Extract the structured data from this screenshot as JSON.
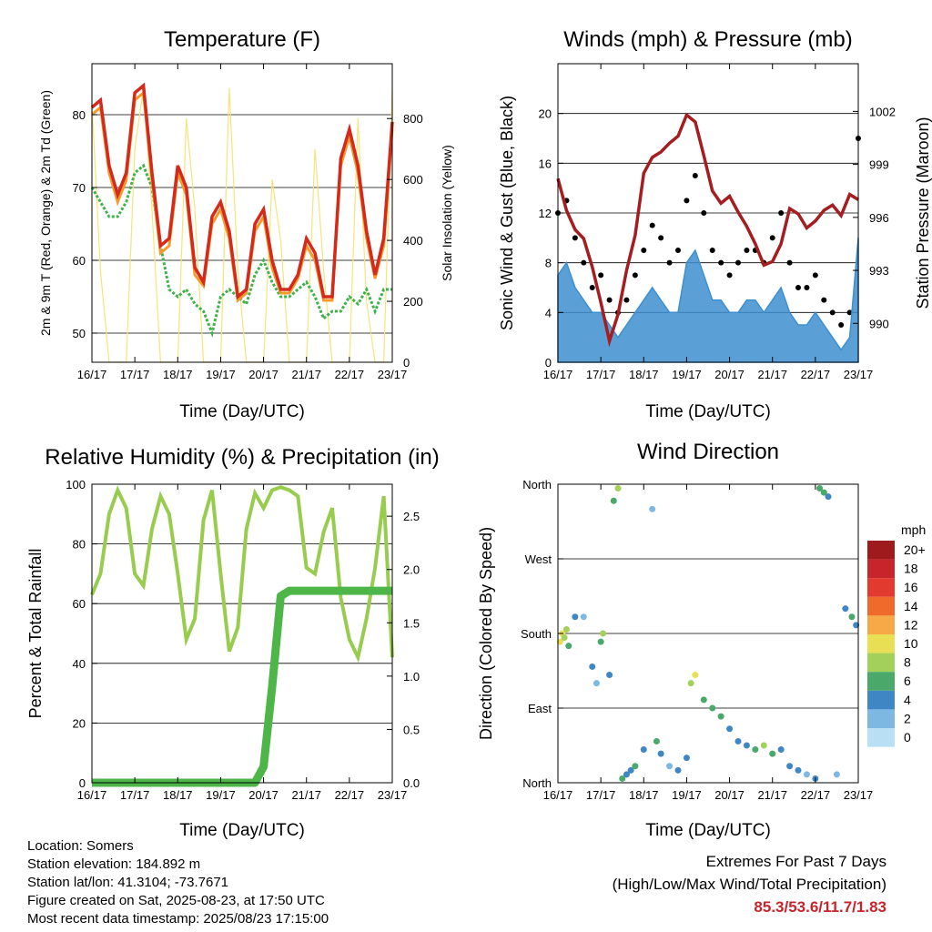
{
  "x_ticks": [
    "16/17",
    "17/17",
    "18/17",
    "19/17",
    "20/17",
    "21/17",
    "22/17",
    "23/17"
  ],
  "colors": {
    "temp2m": "#d42a1c",
    "temp9m": "#f39a2c",
    "dewpoint": "#3fb24a",
    "solar": "#f7e37a",
    "wind": "#3d8fd0",
    "gust": "#000000",
    "pressure": "#a41d21",
    "rh": "#98cc4f",
    "precip": "#4eb648",
    "extremes": "#c8242b"
  },
  "chart_data": [
    {
      "type": "line",
      "title": "Temperature (F)",
      "xlabel": "Time (Day/UTC)",
      "ylabel_left": "2m & 9m T (Red, Orange) & 2m Td (Green)",
      "ylabel_right": "Solar Insolation (Yellow)",
      "ylim_left": [
        46,
        87
      ],
      "ylim_right": [
        0,
        980
      ],
      "yticks_left": [
        50,
        60,
        70,
        80
      ],
      "yticks_right": [
        0,
        200,
        400,
        600,
        800
      ],
      "grid": true,
      "x_days": [
        0,
        0.2,
        0.4,
        0.6,
        0.8,
        1.0,
        1.2,
        1.4,
        1.6,
        1.8,
        2.0,
        2.2,
        2.4,
        2.6,
        2.8,
        3.0,
        3.2,
        3.4,
        3.6,
        3.8,
        4.0,
        4.2,
        4.4,
        4.6,
        4.8,
        5.0,
        5.2,
        5.4,
        5.6,
        5.8,
        6.0,
        6.2,
        6.4,
        6.6,
        6.8,
        7.0
      ],
      "series": [
        {
          "name": "2m T (Red)",
          "values": [
            81,
            82,
            73,
            69,
            72,
            83,
            84,
            72,
            62,
            63,
            73,
            70,
            59,
            57,
            66,
            68,
            64,
            55,
            56,
            65,
            67,
            60,
            56,
            56,
            58,
            63,
            61,
            55,
            55,
            74,
            78,
            73,
            64,
            58,
            63,
            79
          ]
        },
        {
          "name": "9m T (Orange)",
          "values": [
            80,
            81,
            72,
            68,
            71,
            82,
            83,
            71,
            61,
            62,
            72,
            69,
            58,
            56.5,
            65,
            67,
            63,
            54.5,
            55.5,
            64,
            66,
            59,
            55.5,
            55.5,
            57.5,
            62,
            60,
            54.5,
            54.5,
            73,
            77,
            72,
            63,
            57.5,
            62,
            78
          ]
        },
        {
          "name": "2m Td (Green)",
          "values": [
            70,
            68,
            66,
            66,
            68,
            72,
            73,
            70,
            62,
            56,
            55,
            56,
            54,
            53,
            50,
            55,
            56,
            55,
            54,
            58,
            60,
            57,
            55,
            55,
            56,
            57,
            55,
            52,
            53,
            53,
            55,
            54,
            56,
            53,
            56,
            56
          ]
        },
        {
          "name": "Solar Insolation (Yellow)",
          "values": [
            850,
            300,
            0,
            0,
            0,
            700,
            900,
            500,
            0,
            0,
            0,
            800,
            500,
            0,
            0,
            0,
            900,
            300,
            0,
            0,
            0,
            600,
            400,
            0,
            0,
            0,
            700,
            300,
            0,
            0,
            0,
            800,
            200,
            0,
            0,
            900
          ]
        }
      ]
    },
    {
      "type": "scatter",
      "title": "Winds (mph) & Pressure (mb)",
      "xlabel": "Time (Day/UTC)",
      "ylabel_left": "Sonic Wind & Gust (Blue, Black)",
      "ylabel_right": "Station Pressure (Maroon)",
      "ylim_left": [
        0,
        24
      ],
      "ylim_right": [
        987.8,
        1004.7
      ],
      "yticks_left": [
        0,
        4,
        8,
        12,
        16,
        20
      ],
      "yticks_right": [
        990,
        993,
        996,
        999,
        1002
      ],
      "grid": true,
      "x_days": [
        0,
        0.2,
        0.4,
        0.6,
        0.8,
        1.0,
        1.2,
        1.4,
        1.6,
        1.8,
        2.0,
        2.2,
        2.4,
        2.6,
        2.8,
        3.0,
        3.2,
        3.4,
        3.6,
        3.8,
        4.0,
        4.2,
        4.4,
        4.6,
        4.8,
        5.0,
        5.2,
        5.4,
        5.6,
        5.8,
        6.0,
        6.2,
        6.4,
        6.6,
        6.8,
        7.0
      ],
      "series": [
        {
          "name": "Sonic Wind (Blue)",
          "values": [
            7,
            8,
            6,
            5,
            4,
            4,
            3,
            2,
            3,
            4,
            5,
            6,
            5,
            4,
            4,
            8,
            9,
            7,
            5,
            5,
            4,
            4,
            5,
            5,
            4,
            5,
            6,
            4,
            3,
            3,
            4,
            3,
            2,
            1,
            2,
            10
          ]
        },
        {
          "name": "Gust (Black)",
          "values": [
            12,
            13,
            10,
            8,
            6,
            7,
            5,
            4,
            5,
            7,
            9,
            11,
            10,
            8,
            9,
            13,
            15,
            12,
            9,
            8,
            7,
            8,
            9,
            9,
            8,
            10,
            12,
            8,
            6,
            6,
            7,
            5,
            4,
            3,
            4,
            18
          ]
        },
        {
          "name": "Station Pressure (Maroon)",
          "values": [
            998.2,
            996.4,
            995.3,
            994.8,
            993.2,
            991.2,
            989,
            990.5,
            993,
            995,
            998.5,
            999.4,
            999.7,
            1000.2,
            1000.6,
            1001.8,
            1001.4,
            999.5,
            997.5,
            996.8,
            997.2,
            996.3,
            995.5,
            994.5,
            993.3,
            993.5,
            994.5,
            996.5,
            996.2,
            995.4,
            995.8,
            996.4,
            996.7,
            996.1,
            997.3,
            997
          ]
        }
      ]
    },
    {
      "type": "line",
      "title": "Relative Humidity (%) & Precipitation (in)",
      "xlabel": "Time (Day/UTC)",
      "ylabel_left": "Percent & Total Rainfall",
      "ylim_left": [
        0,
        100
      ],
      "ylim_right": [
        0,
        2.8
      ],
      "yticks_left": [
        0,
        20,
        40,
        60,
        80,
        100
      ],
      "yticks_right": [
        0.0,
        0.5,
        1.0,
        1.5,
        2.0,
        2.5
      ],
      "grid": true,
      "x_days": [
        0,
        0.2,
        0.4,
        0.6,
        0.8,
        1.0,
        1.2,
        1.4,
        1.6,
        1.8,
        2.0,
        2.2,
        2.4,
        2.6,
        2.8,
        3.0,
        3.2,
        3.4,
        3.6,
        3.8,
        4.0,
        4.2,
        4.4,
        4.6,
        4.8,
        5.0,
        5.2,
        5.4,
        5.6,
        5.8,
        6.0,
        6.2,
        6.4,
        6.6,
        6.8,
        7.0
      ],
      "series": [
        {
          "name": "Relative Humidity",
          "values": [
            63,
            70,
            90,
            98,
            92,
            70,
            66,
            85,
            96,
            90,
            70,
            48,
            55,
            88,
            98,
            70,
            44,
            52,
            85,
            97,
            92,
            98,
            99,
            98,
            96,
            72,
            70,
            84,
            92,
            62,
            48,
            42,
            55,
            72,
            96,
            42
          ]
        },
        {
          "name": "Total Precipitation",
          "values": [
            0,
            0,
            0,
            0,
            0,
            0,
            0,
            0,
            0,
            0,
            0,
            0,
            0,
            0,
            0,
            0,
            0,
            0,
            0,
            0,
            0.15,
            0.9,
            1.75,
            1.8,
            1.8,
            1.8,
            1.8,
            1.8,
            1.8,
            1.8,
            1.8,
            1.8,
            1.8,
            1.8,
            1.8,
            1.8
          ]
        }
      ]
    },
    {
      "type": "scatter",
      "title": "Wind Direction",
      "xlabel": "Time (Day/UTC)",
      "ylabel": "Direction (Colored By Speed)",
      "ylim": [
        0,
        360
      ],
      "yticks": [
        0,
        90,
        180,
        270,
        360
      ],
      "ytick_labels": [
        "North",
        "East",
        "South",
        "West",
        "North"
      ],
      "legend": {
        "title": "mph",
        "labels": [
          "20+",
          "18",
          "16",
          "14",
          "12",
          "10",
          "8",
          "6",
          "4",
          "2",
          "0"
        ],
        "colors": [
          "#9e1a1d",
          "#c8242b",
          "#e23a2e",
          "#f06a2b",
          "#f7a948",
          "#e8df55",
          "#a2d05a",
          "#4aa86b",
          "#3f86c4",
          "#7db8e3",
          "#b9dff5"
        ],
        "placement": "right"
      },
      "grid": true,
      "x_days": [
        0.05,
        0.1,
        0.15,
        0.2,
        0.25,
        0.4,
        0.6,
        0.8,
        0.9,
        1.0,
        1.05,
        1.2,
        1.3,
        1.4,
        1.5,
        1.6,
        1.7,
        1.8,
        2.0,
        2.2,
        2.3,
        2.4,
        2.6,
        2.8,
        3.0,
        3.1,
        3.2,
        3.4,
        3.6,
        3.8,
        4.0,
        4.2,
        4.4,
        4.6,
        4.8,
        5.0,
        5.2,
        5.4,
        5.6,
        5.8,
        6.0,
        6.1,
        6.2,
        6.3,
        6.5,
        6.7,
        6.85,
        6.95
      ],
      "directions": [
        170,
        180,
        175,
        185,
        165,
        200,
        200,
        140,
        120,
        170,
        180,
        130,
        340,
        355,
        5,
        10,
        15,
        20,
        40,
        330,
        50,
        35,
        20,
        15,
        30,
        120,
        130,
        100,
        90,
        80,
        65,
        50,
        45,
        40,
        45,
        35,
        40,
        20,
        15,
        10,
        5,
        355,
        350,
        345,
        10,
        210,
        200,
        190
      ],
      "speeds": [
        9,
        10,
        8,
        7,
        6,
        4,
        2,
        3,
        2,
        5,
        7,
        3,
        6,
        7,
        5,
        4,
        3,
        6,
        4,
        2,
        5,
        4,
        2,
        3,
        3,
        8,
        9,
        6,
        5,
        6,
        4,
        4,
        4,
        5,
        7,
        5,
        4,
        4,
        3,
        2,
        4,
        5,
        6,
        4,
        2,
        4,
        6,
        3
      ]
    }
  ],
  "info": {
    "location": "Location: Somers",
    "elevation": "Station elevation: 184.892 m",
    "latlon": "Station lat/lon: 41.3104; -73.7671",
    "created": "Figure created on Sat, 2025-08-23, at 17:50 UTC",
    "recent": "Most recent data timestamp: 2025/08/23 17:15:00"
  },
  "extremes": {
    "title": "Extremes For Past 7 Days",
    "subtitle": "(High/Low/Max Wind/Total Precipitation)",
    "values": "85.3/53.6/11.7/1.83"
  }
}
